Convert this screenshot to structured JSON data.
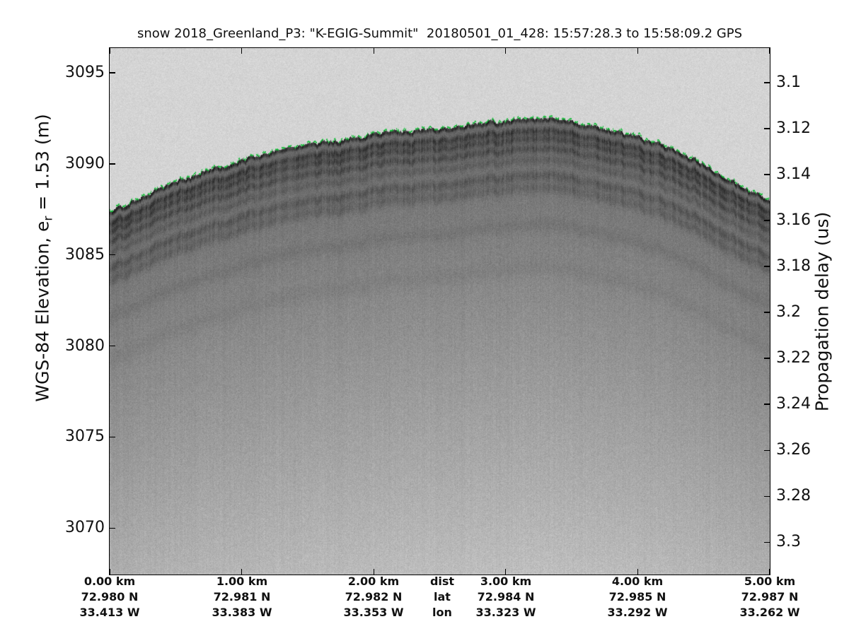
{
  "title": "snow 2018_Greenland_P3: \"K-EGIG-Summit\"  20180501_01_428: 15:57:28.3 to 15:58:09.2 GPS",
  "colors": {
    "background": "#ffffff",
    "axis": "#000000",
    "text": "#111111",
    "surface_tracker_green": "#17be3a",
    "echogram_sky_gray": "#d4d4d4",
    "echogram_dark_gray": "#5e5e5e",
    "echogram_bottom_gray": "#bcbcbc"
  },
  "chart_data": {
    "type": "heatmap",
    "title": "snow 2018_Greenland_P3: \"K-EGIG-Summit\"  20180501_01_428: 15:57:28.3 to 15:58:09.2 GPS",
    "grid": false,
    "left_axis": {
      "label_pre": "WGS-84 Elevation, e",
      "label_sub": "r",
      "label_post": " = 1.53 (m)",
      "ticks": [
        "3095",
        "3090",
        "3085",
        "3080",
        "3075",
        "3070"
      ],
      "tick_values": [
        3095,
        3090,
        3085,
        3080,
        3075,
        3070
      ],
      "range": [
        3096.36,
        3067.45
      ]
    },
    "right_axis": {
      "label": "Propagation delay (us)",
      "ticks": [
        "3.1",
        "3.12",
        "3.14",
        "3.16",
        "3.18",
        "3.2",
        "3.22",
        "3.24",
        "3.26",
        "3.28",
        "3.3"
      ],
      "tick_values": [
        3.1,
        3.12,
        3.14,
        3.16,
        3.18,
        3.2,
        3.22,
        3.24,
        3.26,
        3.28,
        3.3
      ],
      "range": [
        3.0849,
        3.3141
      ]
    },
    "x_axis": {
      "range_km": [
        0,
        5
      ],
      "key_labels": [
        "dist",
        "lat",
        "lon"
      ],
      "key_x_frac": 0.5037,
      "columns": [
        {
          "x_frac": 0.0,
          "km": "0.00 km",
          "lat": "72.980 N",
          "lon": "33.413 W"
        },
        {
          "x_frac": 0.2,
          "km": "1.00 km",
          "lat": "72.981 N",
          "lon": "33.383 W"
        },
        {
          "x_frac": 0.4,
          "km": "2.00 km",
          "lat": "72.982 N",
          "lon": "33.353 W"
        },
        {
          "x_frac": 0.6,
          "km": "3.00 km",
          "lat": "72.984 N",
          "lon": "33.323 W"
        },
        {
          "x_frac": 0.8,
          "km": "4.00 km",
          "lat": "72.985 N",
          "lon": "33.292 W"
        },
        {
          "x_frac": 1.0,
          "km": "5.00 km",
          "lat": "72.987 N",
          "lon": "33.262 W"
        }
      ]
    },
    "surface_profile": {
      "x_km": [
        0.0,
        0.5,
        1.0,
        1.5,
        2.0,
        2.5,
        3.0,
        3.25,
        3.5,
        4.0,
        4.4,
        4.7,
        5.0
      ],
      "elevation_m": [
        3087.35,
        3089.0,
        3090.2,
        3091.0,
        3091.6,
        3092.0,
        3092.35,
        3092.45,
        3092.3,
        3091.5,
        3090.4,
        3089.15,
        3087.95
      ]
    },
    "internal_layers": [
      {
        "depth_m": 0.66,
        "strength": 0.78
      },
      {
        "depth_m": 1.09,
        "strength": 0.66
      },
      {
        "depth_m": 1.63,
        "strength": 0.58
      },
      {
        "depth_m": 2.25,
        "strength": 0.33
      },
      {
        "depth_m": 3.11,
        "strength": 0.46
      },
      {
        "depth_m": 3.77,
        "strength": 0.34
      },
      {
        "depth_m": 5.8,
        "strength": 0.25
      },
      {
        "depth_m": 8.15,
        "strength": 0.18
      }
    ]
  }
}
